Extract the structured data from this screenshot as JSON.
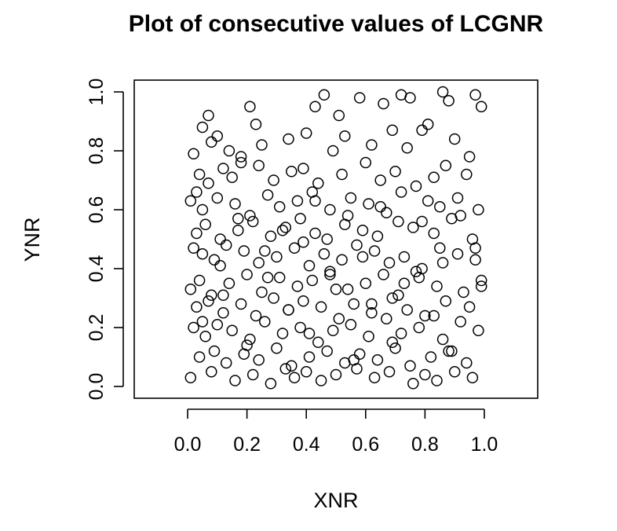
{
  "chart_data": {
    "type": "scatter",
    "title": "Plot of consecutive values of LCGNR",
    "xlabel": "XNR",
    "ylabel": "YNR",
    "xlim": [
      -0.18,
      1.18
    ],
    "ylim": [
      -0.04,
      1.04
    ],
    "xticks": [
      0.0,
      0.2,
      0.4,
      0.6,
      0.8,
      1.0
    ],
    "yticks": [
      0.0,
      0.2,
      0.4,
      0.6,
      0.8,
      1.0
    ],
    "xtick_labels": [
      "0.0",
      "0.2",
      "0.4",
      "0.6",
      "0.8",
      "1.0"
    ],
    "ytick_labels": [
      "0.0",
      "0.2",
      "0.4",
      "0.6",
      "0.8",
      "1.0"
    ],
    "grid": false,
    "marker": "open-circle",
    "x": [
      0.05,
      0.07,
      0.21,
      0.23,
      0.43,
      0.46,
      0.51,
      0.58,
      0.66,
      0.69,
      0.72,
      0.75,
      0.86,
      0.88,
      0.97,
      0.99,
      0.02,
      0.08,
      0.1,
      0.14,
      0.18,
      0.25,
      0.34,
      0.4,
      0.49,
      0.53,
      0.62,
      0.74,
      0.79,
      0.81,
      0.9,
      0.95,
      0.04,
      0.07,
      0.12,
      0.15,
      0.18,
      0.24,
      0.29,
      0.35,
      0.39,
      0.44,
      0.52,
      0.6,
      0.65,
      0.7,
      0.77,
      0.83,
      0.87,
      0.94,
      0.01,
      0.05,
      0.1,
      0.16,
      0.21,
      0.27,
      0.31,
      0.37,
      0.42,
      0.48,
      0.55,
      0.61,
      0.67,
      0.72,
      0.81,
      0.85,
      0.92,
      0.98,
      0.03,
      0.06,
      0.11,
      0.17,
      0.22,
      0.28,
      0.33,
      0.38,
      0.43,
      0.47,
      0.53,
      0.59,
      0.64,
      0.71,
      0.76,
      0.83,
      0.89,
      0.96,
      0.02,
      0.05,
      0.09,
      0.13,
      0.19,
      0.24,
      0.3,
      0.36,
      0.41,
      0.46,
      0.52,
      0.57,
      0.63,
      0.68,
      0.73,
      0.79,
      0.85,
      0.91,
      0.97,
      0.01,
      0.04,
      0.08,
      0.14,
      0.2,
      0.25,
      0.31,
      0.37,
      0.42,
      0.48,
      0.54,
      0.6,
      0.66,
      0.71,
      0.78,
      0.84,
      0.93,
      0.99,
      0.03,
      0.07,
      0.12,
      0.18,
      0.23,
      0.29,
      0.34,
      0.39,
      0.45,
      0.51,
      0.56,
      0.62,
      0.69,
      0.74,
      0.8,
      0.87,
      0.95,
      0.02,
      0.06,
      0.1,
      0.15,
      0.21,
      0.26,
      0.32,
      0.38,
      0.44,
      0.49,
      0.55,
      0.61,
      0.67,
      0.72,
      0.78,
      0.86,
      0.92,
      0.98,
      0.04,
      0.09,
      0.13,
      0.19,
      0.24,
      0.3,
      0.35,
      0.41,
      0.47,
      0.53,
      0.58,
      0.64,
      0.7,
      0.75,
      0.82,
      0.88,
      0.94,
      0.01,
      0.08,
      0.16,
      0.22,
      0.28,
      0.33,
      0.36,
      0.4,
      0.45,
      0.5,
      0.57,
      0.63,
      0.68,
      0.76,
      0.8,
      0.84,
      0.9,
      0.96,
      0.03,
      0.11,
      0.17,
      0.26,
      0.32,
      0.39,
      0.43,
      0.48,
      0.54,
      0.59,
      0.65,
      0.73,
      0.79,
      0.86,
      0.91,
      0.97,
      0.05,
      0.12,
      0.2,
      0.27,
      0.34,
      0.41,
      0.5,
      0.56,
      0.62,
      0.69,
      0.77,
      0.83,
      0.89,
      0.99
    ],
    "y": [
      0.88,
      0.92,
      0.95,
      0.89,
      0.95,
      0.99,
      0.92,
      0.98,
      0.96,
      0.87,
      0.99,
      0.98,
      1.0,
      0.97,
      0.99,
      0.95,
      0.79,
      0.83,
      0.85,
      0.8,
      0.78,
      0.82,
      0.84,
      0.86,
      0.8,
      0.85,
      0.82,
      0.81,
      0.87,
      0.89,
      0.84,
      0.78,
      0.72,
      0.69,
      0.74,
      0.71,
      0.76,
      0.75,
      0.7,
      0.73,
      0.74,
      0.69,
      0.72,
      0.76,
      0.7,
      0.73,
      0.68,
      0.71,
      0.75,
      0.72,
      0.63,
      0.6,
      0.64,
      0.62,
      0.58,
      0.65,
      0.61,
      0.63,
      0.66,
      0.6,
      0.64,
      0.62,
      0.59,
      0.66,
      0.63,
      0.61,
      0.58,
      0.6,
      0.52,
      0.55,
      0.5,
      0.53,
      0.56,
      0.51,
      0.54,
      0.57,
      0.52,
      0.5,
      0.55,
      0.53,
      0.51,
      0.56,
      0.54,
      0.52,
      0.57,
      0.5,
      0.47,
      0.45,
      0.43,
      0.48,
      0.46,
      0.42,
      0.44,
      0.47,
      0.41,
      0.45,
      0.43,
      0.48,
      0.46,
      0.42,
      0.44,
      0.4,
      0.47,
      0.45,
      0.43,
      0.33,
      0.36,
      0.31,
      0.35,
      0.38,
      0.32,
      0.37,
      0.34,
      0.36,
      0.39,
      0.33,
      0.35,
      0.38,
      0.31,
      0.37,
      0.34,
      0.32,
      0.36,
      0.27,
      0.29,
      0.25,
      0.28,
      0.24,
      0.3,
      0.26,
      0.29,
      0.27,
      0.23,
      0.28,
      0.25,
      0.3,
      0.26,
      0.24,
      0.29,
      0.27,
      0.2,
      0.17,
      0.21,
      0.19,
      0.16,
      0.22,
      0.18,
      0.2,
      0.15,
      0.19,
      0.21,
      0.17,
      0.23,
      0.18,
      0.2,
      0.16,
      0.22,
      0.19,
      0.1,
      0.12,
      0.08,
      0.11,
      0.09,
      0.13,
      0.07,
      0.1,
      0.12,
      0.08,
      0.11,
      0.09,
      0.13,
      0.07,
      0.1,
      0.12,
      0.08,
      0.03,
      0.05,
      0.02,
      0.04,
      0.01,
      0.06,
      0.03,
      0.05,
      0.02,
      0.04,
      0.06,
      0.03,
      0.05,
      0.01,
      0.04,
      0.02,
      0.05,
      0.03,
      0.66,
      0.41,
      0.57,
      0.46,
      0.53,
      0.49,
      0.63,
      0.38,
      0.58,
      0.44,
      0.61,
      0.35,
      0.56,
      0.42,
      0.64,
      0.47,
      0.22,
      0.31,
      0.14,
      0.37,
      0.26,
      0.18,
      0.33,
      0.09,
      0.28,
      0.15,
      0.39,
      0.24,
      0.12,
      0.34
    ]
  }
}
